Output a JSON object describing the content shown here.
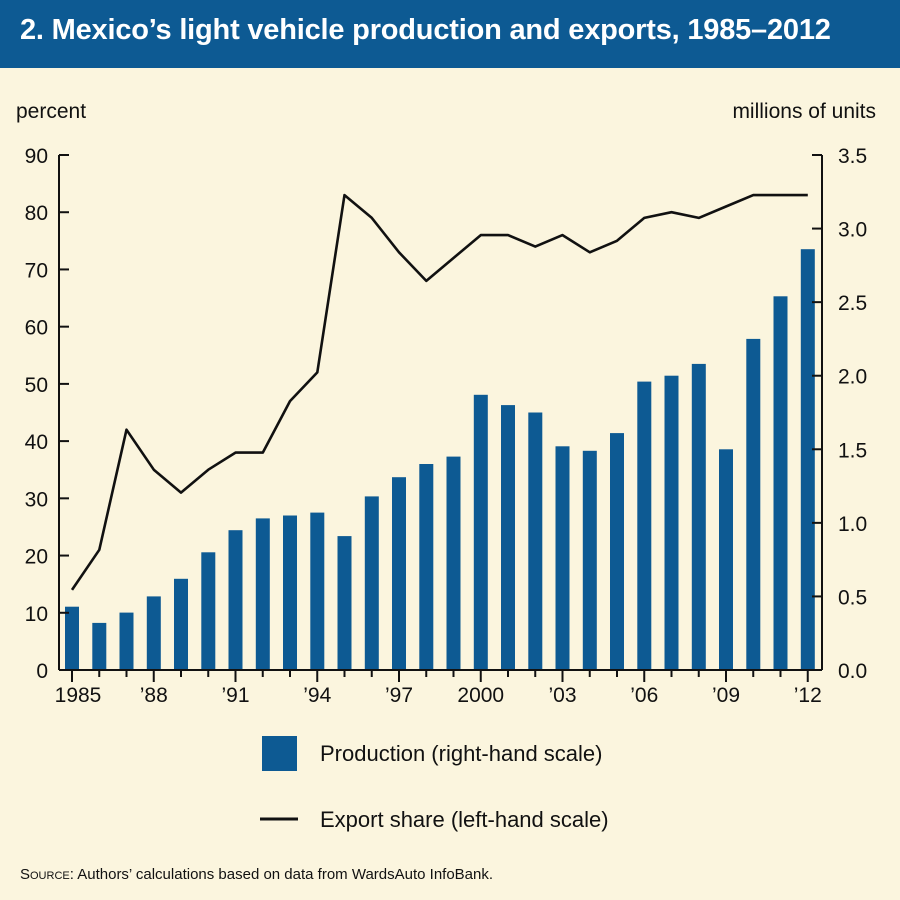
{
  "title": "2. Mexico’s light vehicle production and exports, 1985–2012",
  "source": {
    "label": "Source",
    "text": ": Authors’ calculations based on data from WardsAuto InfoBank."
  },
  "colors": {
    "title_bg": "#0d5a93",
    "bar": "#0d5a93",
    "line": "#111111",
    "background": "#fbf5de"
  },
  "chart_data": {
    "type": "bar",
    "left_axis": {
      "label": "percent",
      "range": [
        0,
        90
      ],
      "ticks": [
        "0",
        "10",
        "20",
        "30",
        "40",
        "50",
        "60",
        "70",
        "80",
        "90"
      ]
    },
    "right_axis": {
      "label": "millions of units",
      "range": [
        0,
        3.5
      ],
      "ticks": [
        "0.0",
        "0.5",
        "1.0",
        "1.5",
        "2.0",
        "2.5",
        "3.0",
        "3.5"
      ]
    },
    "x_tick_labels": [
      "1985",
      "’88",
      "’91",
      "’94",
      "’97",
      "2000",
      "’03",
      "’06",
      "’09",
      "’12"
    ],
    "years": [
      1985,
      1986,
      1987,
      1988,
      1989,
      1990,
      1991,
      1992,
      1993,
      1994,
      1995,
      1996,
      1997,
      1998,
      1999,
      2000,
      2001,
      2002,
      2003,
      2004,
      2005,
      2006,
      2007,
      2008,
      2009,
      2010,
      2011,
      2012
    ],
    "series": [
      {
        "name": "Production (right-hand scale)",
        "kind": "bar",
        "axis": "right",
        "values": [
          0.43,
          0.32,
          0.39,
          0.5,
          0.62,
          0.8,
          0.95,
          1.03,
          1.05,
          1.07,
          0.91,
          1.18,
          1.31,
          1.4,
          1.45,
          1.87,
          1.8,
          1.75,
          1.52,
          1.49,
          1.61,
          1.96,
          2.0,
          2.08,
          1.5,
          2.25,
          2.54,
          2.86
        ]
      },
      {
        "name": "Export share (left-hand scale)",
        "kind": "line",
        "axis": "left",
        "values": [
          14,
          21,
          42,
          35,
          31,
          35,
          38,
          38,
          47,
          52,
          83,
          79,
          73,
          68,
          72,
          76,
          76,
          74,
          76,
          73,
          75,
          79,
          80,
          79,
          81,
          83,
          83,
          83
        ]
      }
    ],
    "grid": false,
    "legend_position": "bottom"
  }
}
